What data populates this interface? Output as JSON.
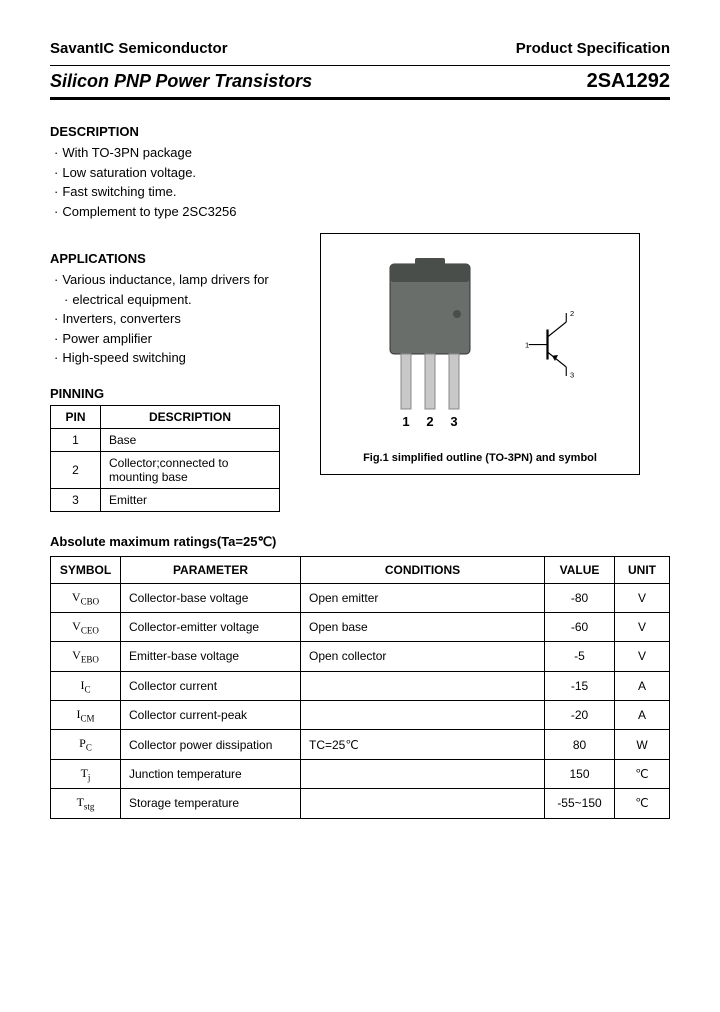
{
  "header": {
    "company": "SavantIC Semiconductor",
    "spec_label": "Product Specification",
    "title": "Silicon PNP Power Transistors",
    "part_number": "2SA1292"
  },
  "description": {
    "heading": "DESCRIPTION",
    "items": [
      "With TO-3PN package",
      "Low saturation voltage.",
      "Fast switching time.",
      "Complement to type 2SC3256"
    ]
  },
  "applications": {
    "heading": "APPLICATIONS",
    "items": [
      "Various inductance, lamp drivers for",
      "electrical equipment.",
      "Inverters, converters",
      "Power amplifier",
      "High-speed switching"
    ]
  },
  "pinning": {
    "heading": "PINNING",
    "col1": "PIN",
    "col2": "DESCRIPTION",
    "rows": [
      {
        "pin": "1",
        "desc": "Base"
      },
      {
        "pin": "2",
        "desc": "Collector;connected to mounting base"
      },
      {
        "pin": "3",
        "desc": "Emitter"
      }
    ]
  },
  "figure": {
    "pin_labels": {
      "p1": "1",
      "p2": "2",
      "p3": "3"
    },
    "symbol_labels": {
      "t1": "1",
      "t2": "2",
      "t3": "3"
    },
    "caption": "Fig.1 simplified outline (TO-3PN) and symbol"
  },
  "ratings": {
    "heading": "Absolute maximum ratings(Ta=25℃)",
    "headers": {
      "symbol": "SYMBOL",
      "param": "PARAMETER",
      "cond": "CONDITIONS",
      "val": "VALUE",
      "unit": "UNIT"
    },
    "rows": [
      {
        "sym": "V",
        "sub": "CBO",
        "param": "Collector-base voltage",
        "cond": "Open emitter",
        "val": "-80",
        "unit": "V"
      },
      {
        "sym": "V",
        "sub": "CEO",
        "param": "Collector-emitter voltage",
        "cond": "Open base",
        "val": "-60",
        "unit": "V"
      },
      {
        "sym": "V",
        "sub": "EBO",
        "param": "Emitter-base voltage",
        "cond": "Open collector",
        "val": "-5",
        "unit": "V"
      },
      {
        "sym": "I",
        "sub": "C",
        "param": "Collector current",
        "cond": "",
        "val": "-15",
        "unit": "A"
      },
      {
        "sym": "I",
        "sub": "CM",
        "param": "Collector current-peak",
        "cond": "",
        "val": "-20",
        "unit": "A"
      },
      {
        "sym": "P",
        "sub": "C",
        "param": "Collector power dissipation",
        "cond": "TC=25℃",
        "val": "80",
        "unit": "W"
      },
      {
        "sym": "T",
        "sub": "j",
        "param": "Junction temperature",
        "cond": "",
        "val": "150",
        "unit": "℃"
      },
      {
        "sym": "T",
        "sub": "stg",
        "param": "Storage temperature",
        "cond": "",
        "val": "-55~150",
        "unit": "℃"
      }
    ]
  },
  "colors": {
    "package_body": "#6a6e6a",
    "package_dark": "#4a4e4a",
    "pin_metal": "#c8c8c8"
  }
}
